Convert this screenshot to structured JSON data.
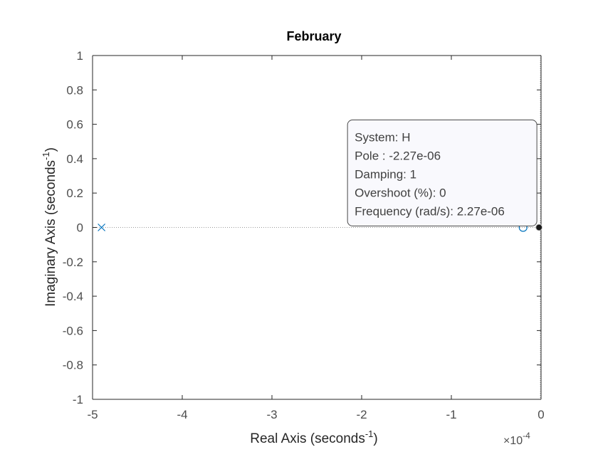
{
  "chart_data": {
    "type": "scatter",
    "title": "February",
    "xlabel": "Real Axis (seconds",
    "xlabel_sup": "-1",
    "xlabel_close": ")",
    "ylabel": "Imaginary Axis (seconds",
    "ylabel_sup": "-1",
    "ylabel_close": ")",
    "x_exponent_prefix": "×10",
    "x_exponent_sup": "-4",
    "xlim": [
      -5,
      0
    ],
    "ylim": [
      -1,
      1
    ],
    "x_ticks": [
      -5,
      -4,
      -3,
      -2,
      -1,
      0
    ],
    "x_tick_labels": [
      "-5",
      "-4",
      "-3",
      "-2",
      "-1",
      "0"
    ],
    "y_ticks": [
      -1,
      -0.8,
      -0.6,
      -0.4,
      -0.2,
      0,
      0.2,
      0.4,
      0.6,
      0.8,
      1
    ],
    "y_tick_labels": [
      "-1",
      "-0.8",
      "-0.6",
      "-0.4",
      "-0.2",
      "0",
      "0.2",
      "0.4",
      "0.6",
      "0.8",
      "1"
    ],
    "grid": false,
    "colors": {
      "series": "#0072BD",
      "axis": "#262626",
      "tick_text": "#4d4d4d",
      "dotted": "#9a9a9a"
    },
    "series": [
      {
        "marker": "x",
        "points": [
          {
            "x": -4.9,
            "y": 0
          }
        ]
      },
      {
        "marker": "o",
        "points": [
          {
            "x": -0.2,
            "y": 0
          }
        ]
      },
      {
        "marker": "selected",
        "points": [
          {
            "x": -0.0227,
            "y": 0
          }
        ]
      }
    ],
    "datatip": {
      "anchor": {
        "x": -0.0227,
        "y": 0
      },
      "lines": [
        "System: H",
        "Pole : -2.27e-06",
        "Damping: 1",
        "Overshoot (%): 0",
        "Frequency (rad/s): 2.27e-06"
      ]
    }
  }
}
